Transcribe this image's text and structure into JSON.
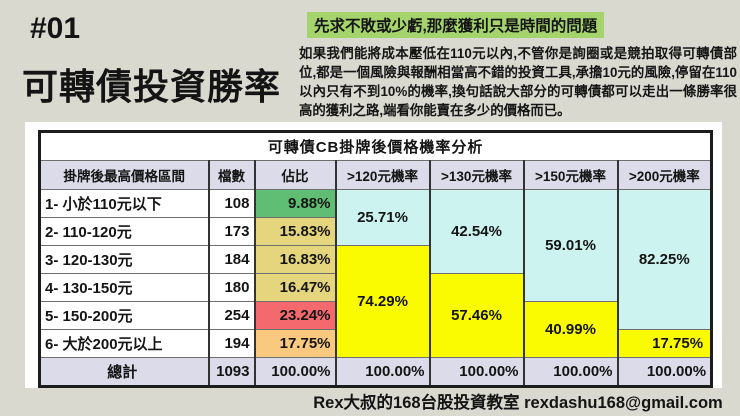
{
  "slide": {
    "badge": "#01",
    "title": "可轉債投資勝率",
    "highlight": "先求不敗或少虧,那麼獲利只是時間的問題",
    "paragraph": "如果我們能將成本壓低在110元以內,不管你是詢圈或是競拍取得可轉債部位,都是一個風險與報酬相當高不錯的投資工具,承擔10元的風險,停留在110以內只有不到10%的機率,換句話說大部分的可轉債都可以走出一條勝率很高的獲利之路,端看你能賣在多少的價格而已。",
    "footer": "Rex大叔的168台股投資教室 rexdashu168@gmail.com"
  },
  "table": {
    "title": "可轉債CB掛牌後價格機率分析",
    "headers": [
      "掛牌後最高價格區間",
      "檔數",
      "佔比",
      ">120元機率",
      ">130元機率",
      ">150元機率",
      ">200元機率"
    ],
    "rows": [
      {
        "range": "1- 小於110元以下",
        "count": "108",
        "pct": "9.88%",
        "pct_color": "green"
      },
      {
        "range": "2- 110-120元",
        "count": "173",
        "pct": "15.83%",
        "pct_color": "khaki"
      },
      {
        "range": "3- 120-130元",
        "count": "184",
        "pct": "16.83%",
        "pct_color": "khaki"
      },
      {
        "range": "4- 130-150元",
        "count": "180",
        "pct": "16.47%",
        "pct_color": "khaki"
      },
      {
        "range": "5- 150-200元",
        "count": "254",
        "pct": "23.24%",
        "pct_color": "red"
      },
      {
        "range": "6- 大於200元以上",
        "count": "194",
        "pct": "17.75%",
        "pct_color": "orange"
      }
    ],
    "prob_cells": [
      {
        "col": 3,
        "row": 0,
        "rowspan": 2,
        "value": "25.71%",
        "color": "cyan"
      },
      {
        "col": 3,
        "row": 2,
        "rowspan": 4,
        "value": "74.29%",
        "color": "yellow"
      },
      {
        "col": 4,
        "row": 0,
        "rowspan": 3,
        "value": "42.54%",
        "color": "cyan"
      },
      {
        "col": 4,
        "row": 3,
        "rowspan": 3,
        "value": "57.46%",
        "color": "yellow"
      },
      {
        "col": 5,
        "row": 0,
        "rowspan": 4,
        "value": "59.01%",
        "color": "cyan"
      },
      {
        "col": 5,
        "row": 4,
        "rowspan": 2,
        "value": "40.99%",
        "color": "yellow"
      },
      {
        "col": 6,
        "row": 0,
        "rowspan": 5,
        "value": "82.25%",
        "color": "cyan"
      },
      {
        "col": 6,
        "row": 5,
        "rowspan": 1,
        "value": "17.75%",
        "color": "yellow",
        "align": "right"
      }
    ],
    "total": [
      "總計",
      "1093",
      "100.00%",
      "100.00%",
      "100.00%",
      "100.00%",
      "100.00%"
    ]
  },
  "colors": {
    "slide_bg": "#d9d9d0",
    "panel_bg": "#ffffff",
    "highlight_green": "#a5d46c",
    "header_lavender": "#dbdbea",
    "cyan": "#cdf3f1",
    "yellow": "#fbfb00",
    "green": "#5fbd74",
    "khaki": "#e5d57d",
    "red": "#f4696d",
    "orange": "#f8c97e"
  },
  "chart_data": {
    "type": "table",
    "title": "可轉債CB掛牌後價格機率分析",
    "columns": [
      "掛牌後最高價格區間",
      "檔數",
      "佔比",
      ">120元機率",
      ">130元機率",
      ">150元機率",
      ">200元機率"
    ],
    "rows": [
      [
        "1- 小於110元以下",
        108,
        "9.88%",
        "25.71%",
        "42.54%",
        "59.01%",
        "82.25%"
      ],
      [
        "2- 110-120元",
        173,
        "15.83%",
        "25.71%",
        "42.54%",
        "59.01%",
        "82.25%"
      ],
      [
        "3- 120-130元",
        184,
        "16.83%",
        "74.29%",
        "42.54%",
        "59.01%",
        "82.25%"
      ],
      [
        "4- 130-150元",
        180,
        "16.47%",
        "74.29%",
        "57.46%",
        "59.01%",
        "82.25%"
      ],
      [
        "5- 150-200元",
        254,
        "23.24%",
        "74.29%",
        "57.46%",
        "40.99%",
        "82.25%"
      ],
      [
        "6- 大於200元以上",
        194,
        "17.75%",
        "74.29%",
        "57.46%",
        "40.99%",
        "17.75%"
      ],
      [
        "總計",
        1093,
        "100.00%",
        "100.00%",
        "100.00%",
        "100.00%",
        "100.00%"
      ]
    ]
  }
}
